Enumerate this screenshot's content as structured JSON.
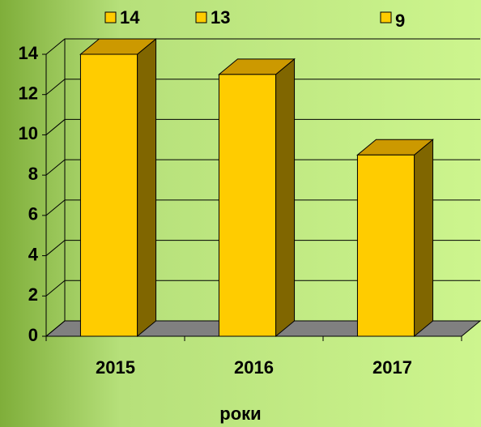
{
  "chart_data": {
    "type": "bar3d",
    "legend": [
      "14",
      "13",
      "9"
    ],
    "categories": [
      "2015",
      "2016",
      "2017"
    ],
    "values": [
      14,
      13,
      9
    ],
    "color": "#ffcc00",
    "x_label": "роки",
    "ylim": [
      0,
      14
    ],
    "yticks": [
      0,
      2,
      4,
      6,
      8,
      10,
      12,
      14
    ],
    "grid": true
  }
}
